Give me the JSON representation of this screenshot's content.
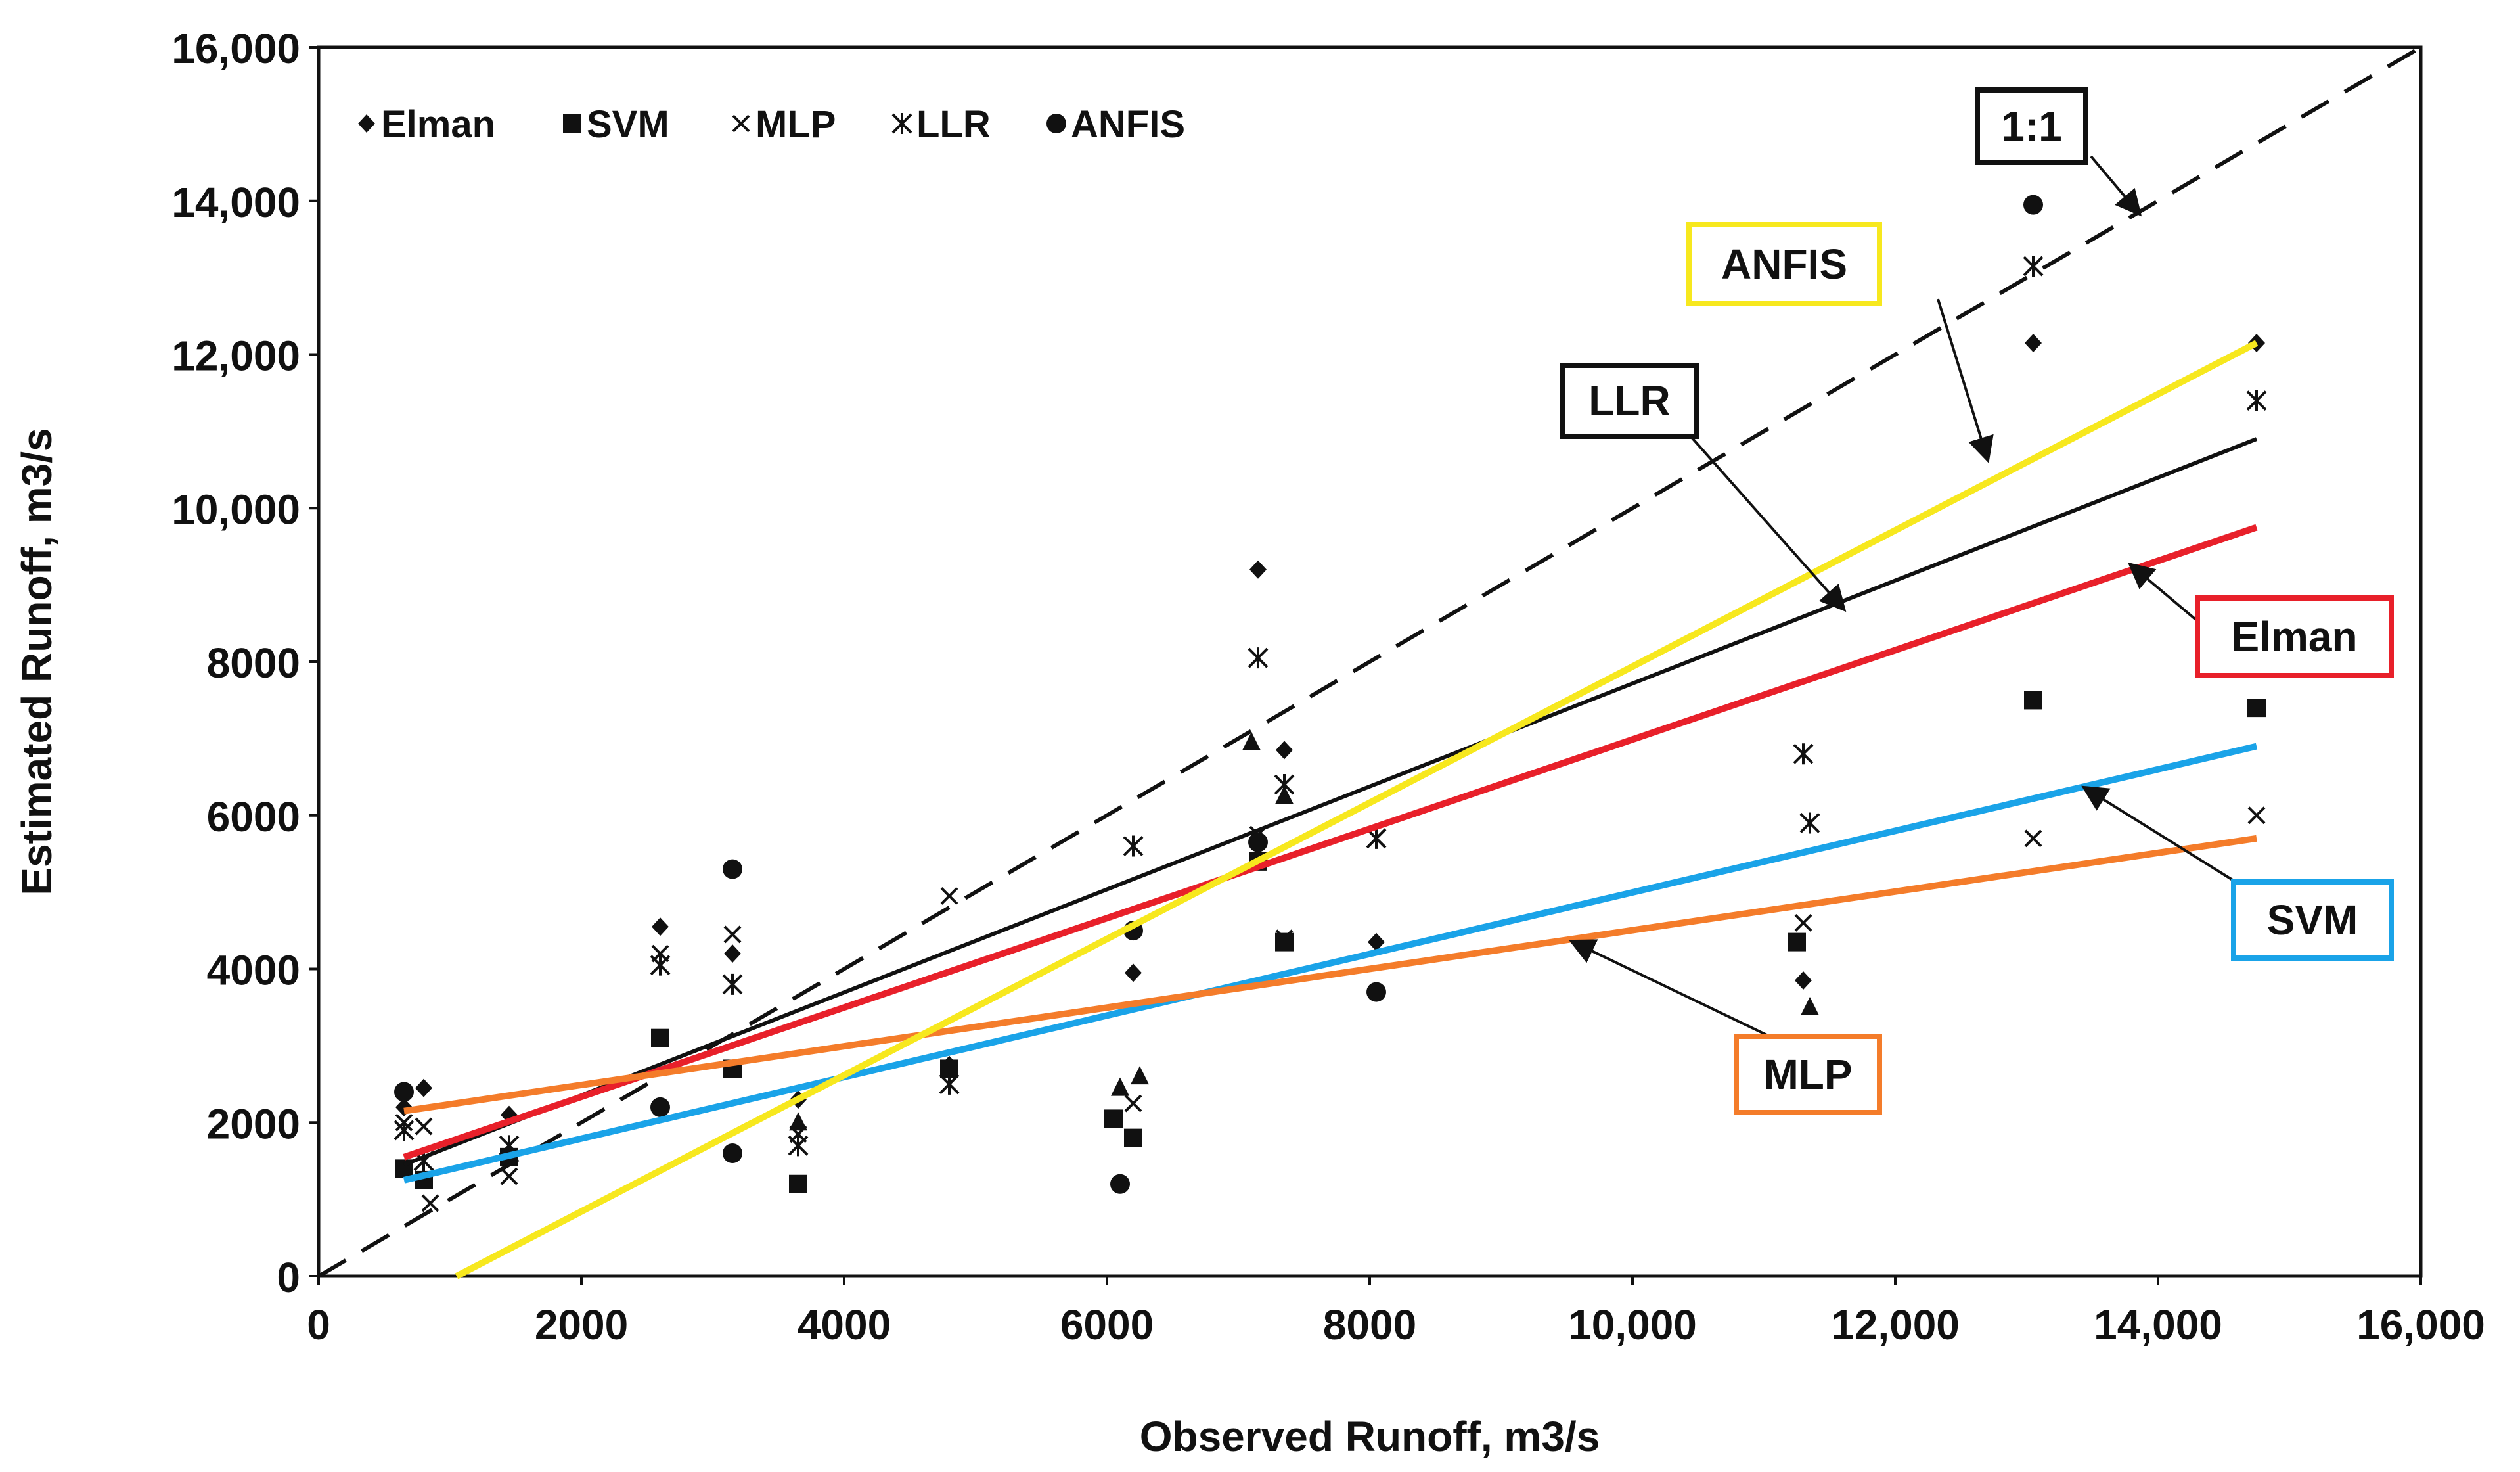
{
  "chart_data": {
    "type": "scatter",
    "title": "",
    "xlabel": "Observed Runoff, m3/s",
    "ylabel": "Estimated Runoff, m3/s",
    "xlim": [
      0,
      16000
    ],
    "ylim": [
      0,
      16000
    ],
    "x_ticks": [
      0,
      2000,
      4000,
      6000,
      8000,
      10000,
      12000,
      14000,
      16000
    ],
    "x_tick_labels": [
      "0",
      "2000",
      "4000",
      "6000",
      "8000",
      "10,000",
      "12,000",
      "14,000",
      "16,000"
    ],
    "y_ticks": [
      0,
      2000,
      4000,
      6000,
      8000,
      10000,
      12000,
      14000,
      16000
    ],
    "y_tick_labels": [
      "0",
      "2000",
      "4000",
      "6000",
      "8000",
      "10,000",
      "12,000",
      "14,000",
      "16,000"
    ],
    "legend": {
      "placement": "top-left",
      "entries": [
        {
          "name": "Elman",
          "marker": "diamond"
        },
        {
          "name": "SVM",
          "marker": "square"
        },
        {
          "name": "MLP",
          "marker": "x"
        },
        {
          "name": "LLR",
          "marker": "star"
        },
        {
          "name": "ANFIS",
          "marker": "circle"
        }
      ]
    },
    "series": [
      {
        "name": "Elman",
        "marker": "diamond",
        "x": [
          650,
          800,
          1450,
          2600,
          3150,
          3650,
          4800,
          6200,
          7150,
          7350,
          8050,
          11300,
          13050,
          14750
        ],
        "y": [
          2200,
          2450,
          2100,
          4550,
          4200,
          2300,
          2750,
          3950,
          9200,
          6850,
          4350,
          3850,
          12150,
          12150
        ]
      },
      {
        "name": "SVM",
        "marker": "square",
        "x": [
          650,
          800,
          1450,
          2600,
          3150,
          3650,
          4800,
          6050,
          6200,
          7150,
          7350,
          11250,
          13050,
          14750
        ],
        "y": [
          1400,
          1250,
          1550,
          3100,
          2700,
          1200,
          2700,
          2050,
          1800,
          5400,
          4350,
          4350,
          7500,
          7400
        ]
      },
      {
        "name": "MLP",
        "marker": "x",
        "x": [
          650,
          800,
          850,
          1450,
          2600,
          3150,
          3650,
          4800,
          6200,
          7150,
          7350,
          8050,
          11300,
          13050,
          14750
        ],
        "y": [
          2000,
          1950,
          950,
          1300,
          4200,
          4450,
          1850,
          4950,
          2250,
          5750,
          4400,
          5700,
          4600,
          5700,
          6000
        ]
      },
      {
        "name": "LLR",
        "marker": "star",
        "x": [
          650,
          800,
          1450,
          2600,
          3150,
          3650,
          4800,
          6200,
          7150,
          7350,
          8050,
          11300,
          11350,
          13050,
          14750
        ],
        "y": [
          1900,
          1500,
          1700,
          4050,
          3800,
          1700,
          2500,
          5600,
          8050,
          6400,
          5700,
          6800,
          5900,
          13150,
          11400
        ]
      },
      {
        "name": "ANFIS",
        "marker": "circle",
        "x": [
          650,
          2600,
          3150,
          3150,
          6100,
          6200,
          7150,
          8050,
          13050
        ],
        "y": [
          2400,
          2200,
          5300,
          1600,
          1200,
          4500,
          5650,
          3700,
          13950
        ]
      },
      {
        "name": "",
        "marker": "triangle",
        "x": [
          3650,
          6100,
          6250,
          7100,
          7350,
          11350
        ],
        "y": [
          2000,
          2450,
          2600,
          6950,
          6250,
          3500
        ]
      }
    ],
    "fit_lines": [
      {
        "name": "1:1",
        "color": "#111111",
        "style": "dashed",
        "x": [
          0,
          16000
        ],
        "y": [
          0,
          16000
        ]
      },
      {
        "name": "LLR",
        "color": "#111111",
        "style": "solid",
        "x": [
          650,
          14750
        ],
        "y": [
          1450,
          10900
        ]
      },
      {
        "name": "Elman",
        "color": "#e8202a",
        "style": "solid",
        "x": [
          650,
          14750
        ],
        "y": [
          1550,
          9750
        ]
      },
      {
        "name": "SVM",
        "color": "#1aa3e8",
        "style": "solid",
        "x": [
          650,
          14750
        ],
        "y": [
          1250,
          6900
        ]
      },
      {
        "name": "MLP",
        "color": "#f47c2a",
        "style": "solid",
        "x": [
          650,
          14750
        ],
        "y": [
          2150,
          5700
        ]
      },
      {
        "name": "ANFIS",
        "color": "#f7e81e",
        "style": "solid",
        "x": [
          1050,
          14750
        ],
        "y": [
          0,
          12150
        ]
      }
    ],
    "annotations": [
      {
        "label": "1:1",
        "border": "#111111",
        "points_to": [
          13850,
          13850
        ]
      },
      {
        "label": "ANFIS",
        "border": "#f7e81e",
        "points_to": [
          12700,
          10650
        ]
      },
      {
        "label": "LLR",
        "border": "#111111",
        "points_to": [
          11600,
          8700
        ]
      },
      {
        "label": "Elman",
        "border": "#e8202a",
        "points_to": [
          13800,
          9250
        ]
      },
      {
        "label": "SVM",
        "border": "#1aa3e8",
        "points_to": [
          13450,
          6350
        ]
      },
      {
        "label": "MLP",
        "border": "#f47c2a",
        "points_to": [
          9550,
          4350
        ]
      }
    ]
  }
}
